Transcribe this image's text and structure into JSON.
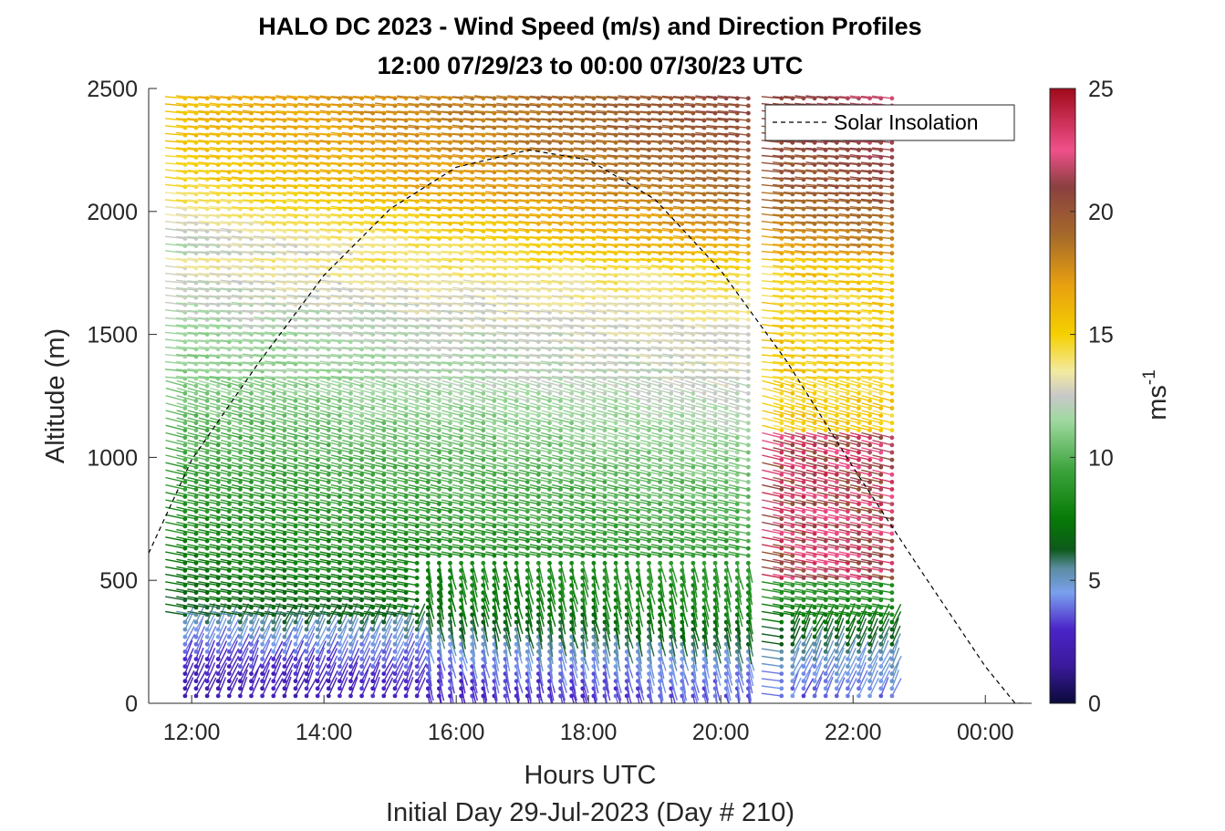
{
  "chart_data": {
    "type": "wind-barb profile",
    "title_line1": "HALO DC 2023 - Wind Speed (m/s) and Direction Profiles",
    "title_line2": "12:00 07/29/23 to 00:00 07/30/23  UTC",
    "xlabel": "Hours UTC",
    "xlabel_sub": "Initial Day 29-Jul-2023 (Day # 210)",
    "ylabel": "Altitude (m)",
    "x_ticks": [
      "12:00",
      "14:00",
      "16:00",
      "18:00",
      "20:00",
      "22:00",
      "00:00"
    ],
    "x_tick_hours": [
      12,
      14,
      16,
      18,
      20,
      22,
      24
    ],
    "xlim_hours": [
      11.35,
      24.7
    ],
    "y_ticks": [
      0,
      500,
      1000,
      1500,
      2000,
      2500
    ],
    "ylim": [
      0,
      2500
    ],
    "colorbar": {
      "label_base": "ms",
      "label_exp": "-1",
      "ticks": [
        0,
        5,
        10,
        15,
        20,
        25
      ],
      "range": [
        0,
        25
      ]
    },
    "legend": {
      "entries": [
        "Solar Insolation"
      ],
      "style": "dashed-black",
      "position": "top-right"
    },
    "profile_time_range_hours": [
      11.9,
      22.75
    ],
    "profile_time_step_hours": 0.167,
    "altitude_step_m": 30,
    "missing_gaps_hours": [
      [
        20.55,
        20.85
      ]
    ],
    "solar_insolation_curve": {
      "peak_hour": 17.1,
      "peak_altitude_m": 2250,
      "points": [
        [
          11.35,
          610
        ],
        [
          12.0,
          990
        ],
        [
          13.0,
          1380
        ],
        [
          14.0,
          1740
        ],
        [
          15.0,
          2010
        ],
        [
          16.0,
          2180
        ],
        [
          17.1,
          2250
        ],
        [
          18.0,
          2210
        ],
        [
          19.0,
          2050
        ],
        [
          20.0,
          1760
        ],
        [
          21.0,
          1390
        ],
        [
          22.0,
          960
        ],
        [
          23.0,
          550
        ],
        [
          24.0,
          150
        ],
        [
          24.45,
          0
        ],
        [
          24.6,
          0
        ]
      ]
    },
    "approx_wind_speed_profile": {
      "note": "speed (m/s) vs altitude at mid-day; colors from colormap",
      "altitude_m": [
        0,
        100,
        200,
        300,
        400,
        500,
        700,
        900,
        1100,
        1300,
        1500,
        1700,
        1900,
        2100,
        2300,
        2500
      ],
      "speed_ms": [
        3.0,
        3.5,
        4.5,
        6.0,
        7.5,
        8.0,
        9.0,
        10.0,
        11.0,
        12.0,
        12.5,
        13.5,
        15.5,
        17.5,
        18.5,
        19.0
      ]
    }
  }
}
